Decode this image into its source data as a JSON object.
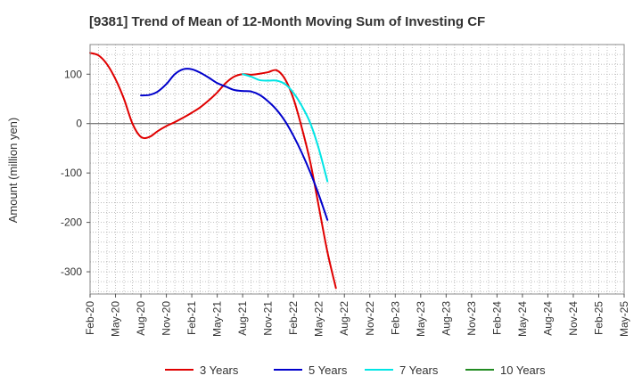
{
  "chart_data": {
    "type": "line",
    "title": "[9381]  Trend of Mean of 12-Month Moving Sum of Investing CF",
    "xlabel": "",
    "ylabel": "Amount (million yen)",
    "ylim": [
      -345,
      160
    ],
    "yticks": [
      100,
      0,
      -100,
      -200,
      -300
    ],
    "x_tick_labels": [
      "Feb-20",
      "May-20",
      "Aug-20",
      "Nov-20",
      "Feb-21",
      "May-21",
      "Aug-21",
      "Nov-21",
      "Feb-22",
      "May-22",
      "Aug-22",
      "Nov-22",
      "Feb-23",
      "May-23",
      "Aug-23",
      "Nov-23",
      "Feb-24",
      "May-24",
      "Aug-24",
      "Nov-24",
      "Feb-25",
      "May-25"
    ],
    "grid": true,
    "legend_position": "bottom",
    "series": [
      {
        "name": "3 Years",
        "color": "#e00000",
        "points": [
          [
            0,
            143
          ],
          [
            1,
            138
          ],
          [
            2,
            120
          ],
          [
            3,
            90
          ],
          [
            4,
            50
          ],
          [
            5,
            0
          ],
          [
            6,
            -27
          ],
          [
            7,
            -27
          ],
          [
            8,
            -15
          ],
          [
            9,
            -5
          ],
          [
            10,
            3
          ],
          [
            11,
            12
          ],
          [
            12,
            22
          ],
          [
            13,
            33
          ],
          [
            14,
            47
          ],
          [
            15,
            63
          ],
          [
            16,
            82
          ],
          [
            17,
            95
          ],
          [
            18,
            100
          ],
          [
            19,
            99
          ],
          [
            20,
            101
          ],
          [
            21,
            104
          ],
          [
            22,
            108
          ],
          [
            23,
            90
          ],
          [
            24,
            50
          ],
          [
            25,
            -10
          ],
          [
            26,
            -80
          ],
          [
            27,
            -170
          ],
          [
            28,
            -260
          ],
          [
            29,
            -333
          ]
        ]
      },
      {
        "name": "5 Years",
        "color": "#0000cc",
        "points": [
          [
            6,
            57
          ],
          [
            7,
            58
          ],
          [
            8,
            65
          ],
          [
            9,
            80
          ],
          [
            10,
            100
          ],
          [
            11,
            110
          ],
          [
            12,
            110
          ],
          [
            13,
            103
          ],
          [
            14,
            93
          ],
          [
            15,
            82
          ],
          [
            16,
            75
          ],
          [
            17,
            68
          ],
          [
            18,
            66
          ],
          [
            19,
            65
          ],
          [
            20,
            58
          ],
          [
            21,
            45
          ],
          [
            22,
            28
          ],
          [
            23,
            5
          ],
          [
            24,
            -25
          ],
          [
            25,
            -60
          ],
          [
            26,
            -100
          ],
          [
            27,
            -145
          ],
          [
            28,
            -195
          ]
        ]
      },
      {
        "name": "7 Years",
        "color": "#00e5e5",
        "points": [
          [
            18,
            100
          ],
          [
            19,
            95
          ],
          [
            20,
            88
          ],
          [
            21,
            87
          ],
          [
            22,
            87
          ],
          [
            23,
            80
          ],
          [
            24,
            62
          ],
          [
            25,
            35
          ],
          [
            26,
            0
          ],
          [
            27,
            -52
          ],
          [
            28,
            -117
          ]
        ]
      },
      {
        "name": "10 Years",
        "color": "#228b22",
        "points": []
      }
    ]
  }
}
